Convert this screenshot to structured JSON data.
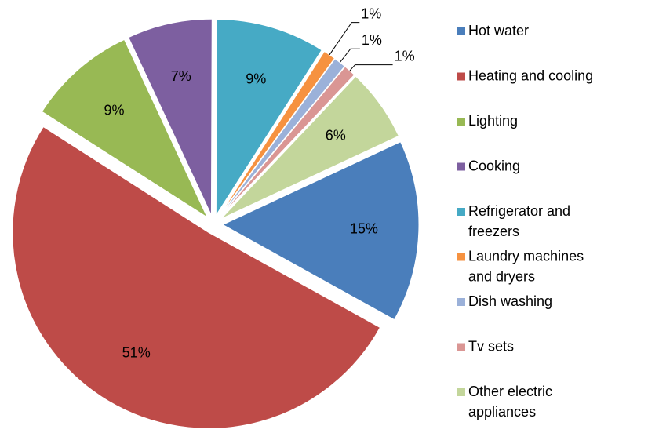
{
  "chart_data": {
    "type": "pie",
    "categories": [
      "Hot water",
      "Heating and cooling",
      "Lighting",
      "Cooking",
      "Refrigerator and freezers",
      "Laundry machines and dryers",
      "Dish washing",
      "Tv sets",
      "Other electric appliances"
    ],
    "values": [
      15,
      51,
      9,
      7,
      9,
      1,
      1,
      1,
      6
    ],
    "value_labels": [
      "15%",
      "51%",
      "9%",
      "7%",
      "9%",
      "1%",
      "1%",
      "1%",
      "6%"
    ],
    "colors": [
      "#4a7ebb",
      "#be4b48",
      "#98b954",
      "#7d5fa0",
      "#46aac5",
      "#f69240",
      "#9bb1d9",
      "#da9694",
      "#c3d69b"
    ],
    "legend": "right"
  }
}
